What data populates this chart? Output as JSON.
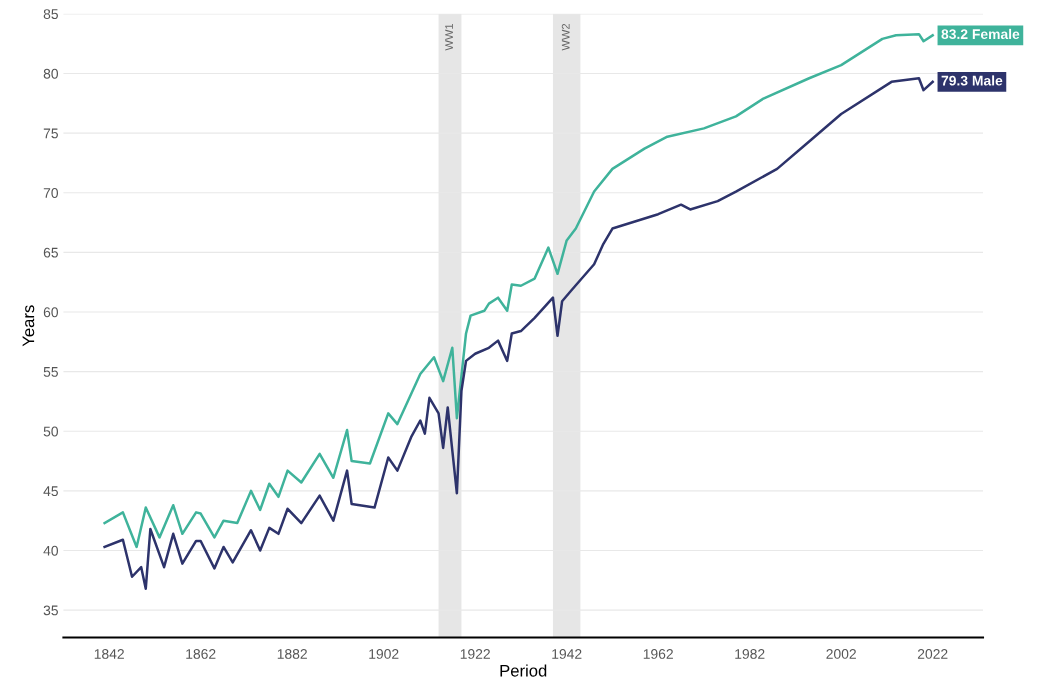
{
  "chart_data": {
    "type": "line",
    "xlabel": "Period",
    "ylabel": "Years",
    "xlim": [
      1832,
      2033
    ],
    "ylim": [
      32.7,
      85
    ],
    "xticks": [
      1842,
      1862,
      1882,
      1902,
      1922,
      1942,
      1962,
      1982,
      2002,
      2022
    ],
    "yticks": [
      35,
      40,
      45,
      50,
      55,
      60,
      65,
      70,
      75,
      80,
      85
    ],
    "grid": "y",
    "legend": false,
    "line_style": "solid",
    "marker": "none",
    "bands": [
      {
        "axis": "x",
        "from": 1914,
        "to": 1919,
        "label": "WW1",
        "color": "#e6e6e6"
      },
      {
        "axis": "x",
        "from": 1939,
        "to": 1945,
        "label": "WW2",
        "color": "#e6e6e6"
      }
    ],
    "series": [
      {
        "name": "Female",
        "color": "#3fb39b",
        "x": [
          1841,
          1845,
          1848,
          1850,
          1853,
          1856,
          1858,
          1861,
          1862,
          1865,
          1867,
          1870,
          1873,
          1875,
          1877,
          1879,
          1881,
          1884,
          1888,
          1891,
          1894,
          1895,
          1899,
          1903,
          1905,
          1910,
          1913,
          1915,
          1917,
          1918,
          1920,
          1921,
          1924,
          1925,
          1927,
          1929,
          1930,
          1932,
          1935,
          1938,
          1940,
          1942,
          1944,
          1948,
          1952,
          1959,
          1964,
          1972,
          1979,
          1985,
          1995,
          2002,
          2011,
          2014,
          2019,
          2020,
          2022
        ],
        "values": [
          42.3,
          43.2,
          40.3,
          43.6,
          41.1,
          43.8,
          41.4,
          43.2,
          43.1,
          41.1,
          42.5,
          42.3,
          45.0,
          43.4,
          45.6,
          44.5,
          46.7,
          45.7,
          48.1,
          46.1,
          50.1,
          47.5,
          47.3,
          51.5,
          50.6,
          54.8,
          56.2,
          54.2,
          57.0,
          51.1,
          58.2,
          59.7,
          60.1,
          60.7,
          61.2,
          60.1,
          62.3,
          62.2,
          62.8,
          65.4,
          63.2,
          66.0,
          67.0,
          70.1,
          72.0,
          73.7,
          74.7,
          75.4,
          76.4,
          77.9,
          79.6,
          80.7,
          82.9,
          83.2,
          83.3,
          82.7,
          83.2
        ],
        "value_labels": [
          null,
          null,
          null,
          null,
          null,
          null,
          null,
          null,
          null,
          null,
          null,
          null,
          null,
          null,
          null,
          null,
          null,
          null,
          null,
          null,
          null,
          null,
          null,
          null,
          null,
          null,
          null,
          null,
          null,
          null,
          null,
          null,
          null,
          null,
          null,
          null,
          null,
          null,
          null,
          null,
          null,
          null,
          null,
          null,
          null,
          null,
          null,
          null,
          null,
          null,
          null,
          null,
          null,
          null,
          null,
          null,
          "83.2"
        ]
      },
      {
        "name": "Male",
        "color": "#2d336b",
        "x": [
          1841,
          1845,
          1847,
          1849,
          1850,
          1851,
          1854,
          1856,
          1858,
          1861,
          1862,
          1865,
          1867,
          1869,
          1873,
          1875,
          1877,
          1879,
          1881,
          1884,
          1888,
          1891,
          1894,
          1895,
          1900,
          1903,
          1905,
          1908,
          1910,
          1911,
          1912,
          1914,
          1915,
          1916,
          1918,
          1919,
          1920,
          1922,
          1925,
          1927,
          1929,
          1930,
          1932,
          1935,
          1939,
          1940,
          1941,
          1943,
          1948,
          1950,
          1952,
          1962,
          1967,
          1969,
          1975,
          1979,
          1988,
          1995,
          2002,
          2013,
          2019,
          2020,
          2022
        ],
        "values": [
          40.3,
          40.9,
          37.8,
          38.6,
          36.8,
          41.8,
          38.6,
          41.4,
          38.9,
          40.8,
          40.8,
          38.5,
          40.3,
          39.0,
          41.7,
          40.0,
          41.9,
          41.4,
          43.5,
          42.3,
          44.6,
          42.5,
          46.7,
          43.9,
          43.6,
          47.8,
          46.7,
          49.5,
          50.9,
          49.8,
          52.8,
          51.5,
          48.6,
          52.0,
          44.8,
          53.4,
          55.9,
          56.5,
          57.0,
          57.6,
          55.9,
          58.2,
          58.4,
          59.5,
          61.2,
          58.0,
          60.9,
          61.8,
          64.0,
          65.7,
          67.0,
          68.2,
          69.0,
          68.6,
          69.3,
          70.1,
          72.0,
          74.3,
          76.6,
          79.3,
          79.6,
          78.6,
          79.3
        ],
        "value_labels": [
          null,
          null,
          null,
          null,
          null,
          null,
          null,
          null,
          null,
          null,
          null,
          null,
          null,
          null,
          null,
          null,
          null,
          null,
          null,
          null,
          null,
          null,
          null,
          null,
          null,
          null,
          null,
          null,
          null,
          null,
          null,
          null,
          null,
          null,
          null,
          null,
          null,
          null,
          null,
          null,
          null,
          null,
          null,
          null,
          null,
          null,
          null,
          null,
          null,
          null,
          null,
          null,
          null,
          null,
          null,
          null,
          null,
          null,
          null,
          null,
          null,
          null,
          "79.3"
        ]
      }
    ]
  }
}
